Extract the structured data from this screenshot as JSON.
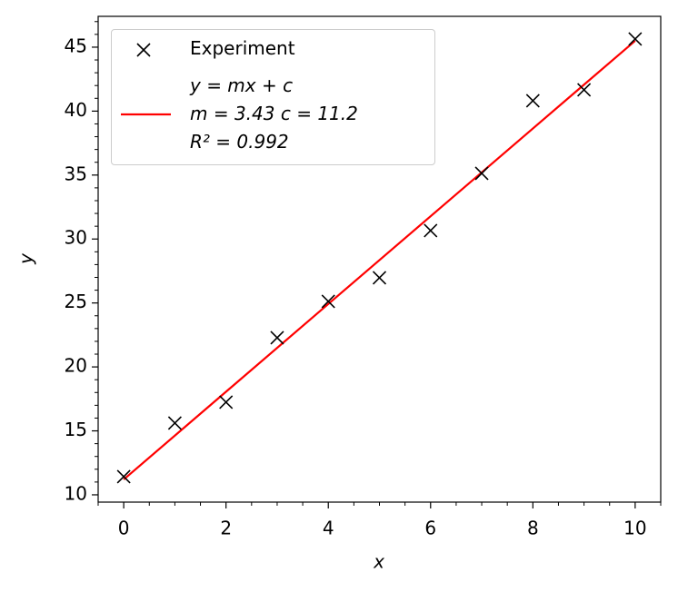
{
  "chart_data": {
    "type": "scatter",
    "x_label": "x",
    "y_label": "y",
    "series": [
      {
        "name": "Experiment",
        "type": "scatter",
        "marker": "x",
        "color": "#000000",
        "x": [
          0,
          1,
          2,
          3,
          4,
          5,
          6,
          7,
          8,
          9,
          10
        ],
        "values": [
          11.42,
          15.61,
          17.24,
          22.28,
          25.12,
          26.97,
          30.66,
          35.13,
          40.81,
          41.66,
          45.64
        ]
      },
      {
        "name": "y = mx + c\nm = 3.43   c = 11.2\nR² = 0.992",
        "type": "line",
        "color": "#ff0000",
        "x": [
          0,
          10
        ],
        "values": [
          11.2,
          45.5
        ]
      }
    ],
    "xlim": [
      -0.5,
      10.5
    ],
    "ylim": [
      9.43,
      47.41
    ],
    "xticks": [
      0,
      2,
      4,
      6,
      8,
      10
    ],
    "yticks": [
      10,
      15,
      20,
      25,
      30,
      35,
      40,
      45
    ],
    "xminorticks": [
      -0.5,
      0.5,
      1,
      1.5,
      2.5,
      3,
      3.5,
      4.5,
      5,
      5.5,
      6.5,
      7,
      7.5,
      8.5,
      9,
      9.5,
      10.5
    ],
    "yminorticks": [
      11,
      12,
      13,
      14,
      16,
      17,
      18,
      19,
      21,
      22,
      23,
      24,
      26,
      27,
      28,
      29,
      31,
      32,
      33,
      34,
      36,
      37,
      38,
      39,
      41,
      42,
      43,
      44,
      46,
      47
    ],
    "legend": "upper left",
    "grid": false
  }
}
